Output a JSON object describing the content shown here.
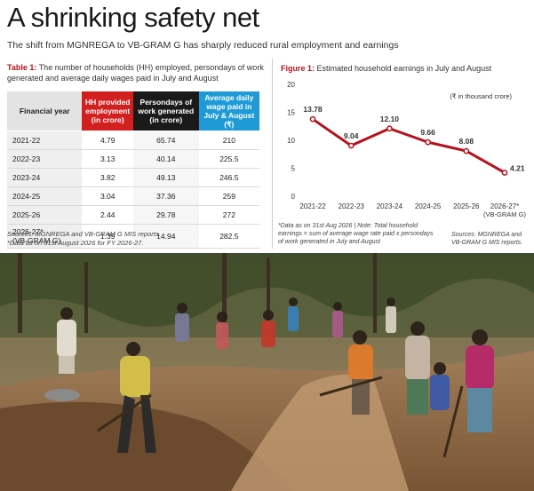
{
  "headline": "A shrinking safety net",
  "subhead": "The shift from MGNREGA to VB-GRAM G has sharply reduced rural employment and earnings",
  "table": {
    "caption_num": "Table 1:",
    "caption_text": "The number of households (HH) employed, persondays of work generated and average daily wages paid in July and August",
    "headers": [
      "Financial year",
      "HH provided employment (in crore)",
      "Persondays of work generated (in crore)",
      "Average daily wage paid in July & August (₹)"
    ],
    "rows": [
      {
        "year": "2021-22",
        "year_note": "",
        "hh": "4.79",
        "persondays": "65.74",
        "wage": "210"
      },
      {
        "year": "2022-23",
        "year_note": "",
        "hh": "3.13",
        "persondays": "40.14",
        "wage": "225.5"
      },
      {
        "year": "2023-24",
        "year_note": "",
        "hh": "3.82",
        "persondays": "49.13",
        "wage": "246.5"
      },
      {
        "year": "2024-25",
        "year_note": "",
        "hh": "3.04",
        "persondays": "37.36",
        "wage": "259"
      },
      {
        "year": "2025-26",
        "year_note": "",
        "hh": "2.44",
        "persondays": "29.78",
        "wage": "272"
      },
      {
        "year": "2026-27*",
        "year_note": "(VB-GRAM G)",
        "hh": "1.39",
        "persondays": "14.94",
        "wage": "282.5"
      }
    ],
    "source_line1": "Sources: MGNREGA and VB-GRAM G MIS reports.",
    "source_line2": "*Data as on 31st August 2026 for FY 2026-27."
  },
  "figure": {
    "caption_num": "Figure 1:",
    "caption_text": "Estimated household earnings in July and August",
    "note": "*Data as on 31st Aug 2026 | Note: Total household earnings = sum of average wage rate paid x persondays of work generated in July and August",
    "source": "Sources: MGNREGA and VB-GRAM G MIS reports."
  },
  "chart_data": {
    "type": "line",
    "title": "Estimated household earnings in July and August",
    "unit_label": "(₹ in thousand crore)",
    "categories": [
      "2021-22",
      "2022-23",
      "2023-24",
      "2024-25",
      "2025-26",
      "2026-27*"
    ],
    "category_notes": [
      "",
      "",
      "",
      "",
      "",
      "(VB-GRAM G)"
    ],
    "series": [
      {
        "values": [
          13.78,
          9.04,
          12.1,
          9.66,
          8.08,
          4.21
        ]
      }
    ],
    "data_labels": [
      "13.78",
      "9.04",
      "12.10",
      "9.66",
      "8.08",
      "4.21"
    ],
    "yticks": [
      0,
      5,
      10,
      15,
      20
    ],
    "ylim": [
      0,
      20
    ],
    "grid": false,
    "line_color": "#b5121b"
  },
  "colors": {
    "accent_red": "#b5121b",
    "header_red": "#d21f1f",
    "header_black": "#1a1a1a",
    "header_blue": "#1e9bd6"
  }
}
